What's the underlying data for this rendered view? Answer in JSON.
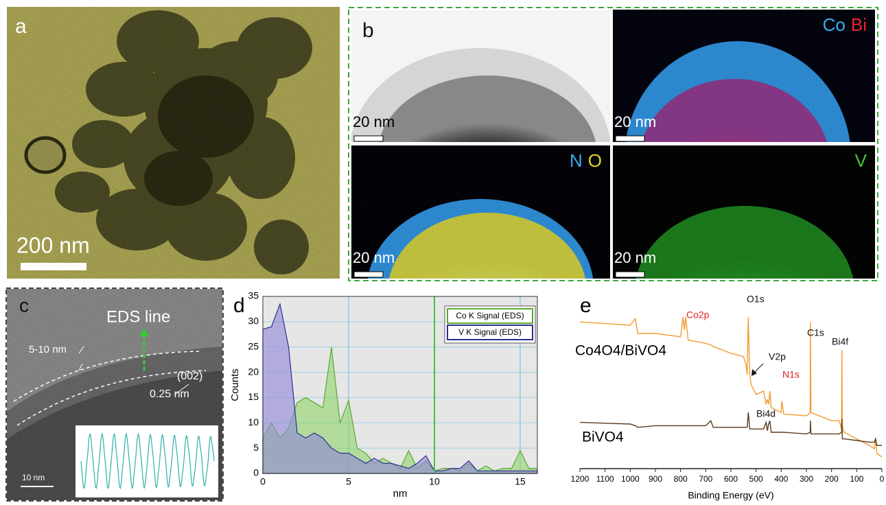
{
  "panel_a": {
    "label": "a",
    "scale_bar": "200 nm"
  },
  "panel_b": {
    "label": "b",
    "maps": [
      {
        "scale_bar": "20 nm"
      },
      {
        "scale_bar": "20 nm",
        "elements": [
          {
            "name": "Co",
            "color": "#3aaee8"
          },
          {
            "name": "Bi",
            "color": "#e8242c"
          }
        ]
      },
      {
        "scale_bar": "20 nm",
        "elements": [
          {
            "name": "N",
            "color": "#3aaee8"
          },
          {
            "name": "O",
            "color": "#e6d820"
          }
        ]
      },
      {
        "scale_bar": "20 nm",
        "elements": [
          {
            "name": "V",
            "color": "#4cc23c"
          }
        ]
      }
    ]
  },
  "panel_c": {
    "label": "c",
    "eds_line": "EDS line",
    "shell_thickness": "5-10 nm",
    "plane": "(002)",
    "d_spacing": "0.25 nm",
    "scale_bar": "10 nm"
  },
  "chart_data": [
    {
      "type": "area",
      "label": "d",
      "x_label": "nm",
      "y_label": "Counts",
      "xlim": [
        0,
        16
      ],
      "xticks": [
        0,
        5,
        10,
        15
      ],
      "ylim": [
        0,
        35
      ],
      "yticks": [
        0,
        5,
        10,
        15,
        20,
        25,
        30,
        35
      ],
      "grid": true,
      "marker_x": 10,
      "marker_color": "#44c044",
      "x": [
        0,
        0.5,
        1,
        1.5,
        2,
        2.5,
        3,
        3.5,
        4,
        4.5,
        5,
        5.5,
        6,
        6.5,
        7,
        7.5,
        8,
        8.5,
        9,
        9.5,
        10,
        10.5,
        11,
        11.5,
        12,
        12.5,
        13,
        13.5,
        14,
        14.5,
        15,
        15.5,
        16
      ],
      "series": [
        {
          "name": "Co K Signal (EDS)",
          "color": "#8fd46a",
          "line_color": "#5aa832",
          "values": [
            7,
            10,
            7,
            9,
            14,
            15,
            14,
            13,
            25,
            10,
            14.5,
            5,
            4,
            2,
            3,
            2,
            1,
            4.5,
            1,
            2.5,
            0.5,
            1,
            1,
            0.5,
            2,
            0.5,
            1.5,
            0.5,
            1,
            1,
            4.5,
            1,
            1
          ]
        },
        {
          "name": "V K Signal (EDS)",
          "color": "#8f86d8",
          "line_color": "#2a2f8f",
          "values": [
            28.5,
            29,
            33.5,
            25,
            8,
            7,
            8,
            7,
            5,
            4,
            4,
            3,
            2,
            3,
            2,
            2,
            1.5,
            1,
            2,
            3.5,
            0.5,
            0.5,
            1,
            1,
            2.5,
            0.5,
            0.5,
            0.5,
            0.5,
            0.5,
            0.5,
            0.5,
            0.5
          ]
        }
      ]
    },
    {
      "type": "line",
      "label": "e",
      "x_label": "Binding Energy (eV)",
      "xlim": [
        1200,
        0
      ],
      "xticks": [
        1200,
        1100,
        1000,
        900,
        800,
        700,
        600,
        500,
        400,
        300,
        200,
        100,
        0
      ],
      "ylim": [
        0,
        100
      ],
      "x": [
        1200,
        1000,
        980,
        970,
        900,
        800,
        790,
        785,
        780,
        770,
        700,
        680,
        670,
        600,
        550,
        540,
        535,
        531,
        525,
        520,
        500,
        470,
        460,
        455,
        450,
        445,
        440,
        400,
        398,
        390,
        300,
        285,
        284,
        282,
        200,
        170,
        160,
        159,
        157,
        150,
        100,
        50,
        30,
        25,
        20,
        0
      ],
      "series": [
        {
          "name": "Co4O4/BiVO4",
          "color": "#f39a2e",
          "values": [
            92,
            90,
            94,
            85,
            85,
            83,
            95,
            87,
            95,
            81,
            79,
            78,
            77,
            73,
            71,
            66,
            60,
            95,
            60,
            54,
            48,
            50,
            42,
            45,
            42,
            50,
            40,
            37,
            44,
            36,
            35,
            37,
            92,
            37,
            32,
            32,
            27,
            75,
            29,
            25,
            21,
            17,
            15,
            21,
            12,
            10
          ]
        },
        {
          "name": "BiVO4",
          "color": "#5a3a1e",
          "values": [
            31,
            30,
            29,
            28,
            29,
            29,
            29,
            29,
            29,
            29,
            29,
            32,
            28,
            28,
            28,
            28,
            28,
            37,
            27,
            27,
            27,
            27,
            31,
            26,
            30,
            32,
            25,
            25,
            25,
            25,
            24,
            25,
            32,
            24,
            24,
            24,
            25,
            33,
            21,
            21,
            20,
            19,
            19,
            21,
            17,
            17
          ]
        }
      ],
      "annotations": [
        {
          "text": "Co2p",
          "color": "#e02020"
        },
        {
          "text": "O1s",
          "color": "#111111"
        },
        {
          "text": "C1s",
          "color": "#111111"
        },
        {
          "text": "Bi4f",
          "color": "#111111"
        },
        {
          "text": "V2p",
          "color": "#111111"
        },
        {
          "text": "N1s",
          "color": "#e02020"
        },
        {
          "text": "Bi4d",
          "color": "#111111"
        }
      ]
    }
  ]
}
